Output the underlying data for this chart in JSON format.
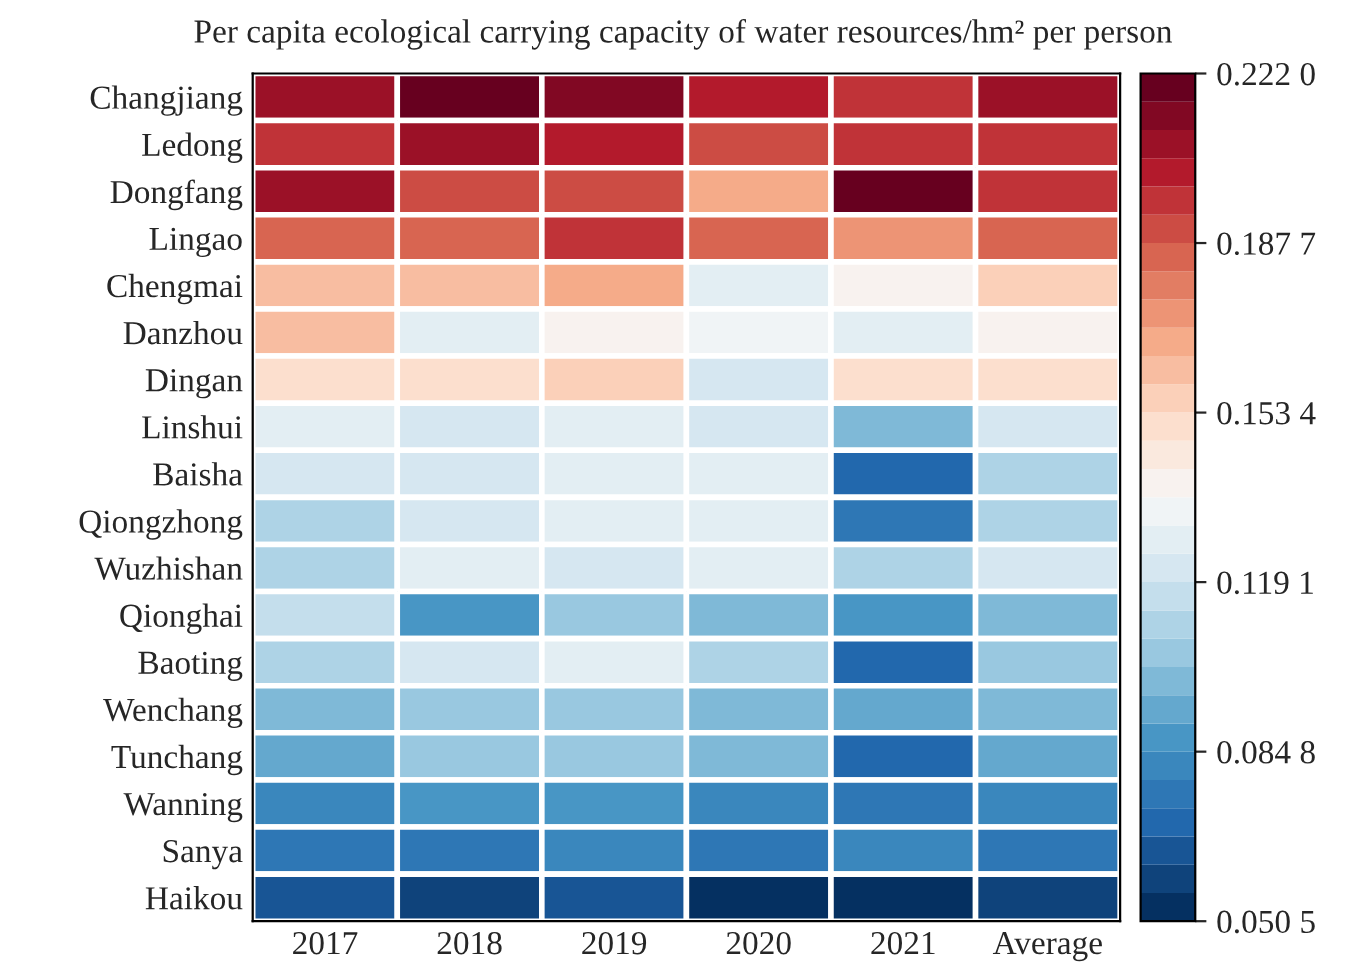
{
  "chart_data": {
    "type": "heatmap",
    "title": "Per capita ecological carrying capacity of water resources/hm² per person",
    "categories": [
      "2017",
      "2018",
      "2019",
      "2020",
      "2021",
      "Average"
    ],
    "y_categories": [
      "Changjiang",
      "Ledong",
      "Dongfang",
      "Lingao",
      "Chengmai",
      "Danzhou",
      "Dingan",
      "Linshui",
      "Baisha",
      "Qiongzhong",
      "Wuzhishan",
      "Qionghai",
      "Baoting",
      "Wenchang",
      "Tunchang",
      "Wanning",
      "Sanya",
      "Haikou"
    ],
    "cells": [
      [
        0.21,
        0.222,
        0.213,
        0.2,
        0.198,
        0.205
      ],
      [
        0.198,
        0.205,
        0.203,
        0.188,
        0.195,
        0.198
      ],
      [
        0.205,
        0.188,
        0.192,
        0.168,
        0.222,
        0.195
      ],
      [
        0.185,
        0.183,
        0.195,
        0.185,
        0.175,
        0.185
      ],
      [
        0.16,
        0.162,
        0.168,
        0.128,
        0.138,
        0.157
      ],
      [
        0.162,
        0.128,
        0.138,
        0.133,
        0.13,
        0.14
      ],
      [
        0.148,
        0.15,
        0.158,
        0.12,
        0.148,
        0.148
      ],
      [
        0.128,
        0.122,
        0.125,
        0.12,
        0.1,
        0.122
      ],
      [
        0.122,
        0.122,
        0.127,
        0.127,
        0.07,
        0.112
      ],
      [
        0.112,
        0.122,
        0.125,
        0.125,
        0.075,
        0.112
      ],
      [
        0.11,
        0.125,
        0.12,
        0.128,
        0.112,
        0.12
      ],
      [
        0.115,
        0.09,
        0.105,
        0.1,
        0.088,
        0.098
      ],
      [
        0.113,
        0.123,
        0.13,
        0.113,
        0.072,
        0.105
      ],
      [
        0.098,
        0.102,
        0.105,
        0.1,
        0.092,
        0.1
      ],
      [
        0.095,
        0.103,
        0.105,
        0.098,
        0.072,
        0.095
      ],
      [
        0.082,
        0.088,
        0.09,
        0.08,
        0.075,
        0.083
      ],
      [
        0.075,
        0.078,
        0.082,
        0.078,
        0.08,
        0.079
      ],
      [
        0.062,
        0.06,
        0.065,
        0.055,
        0.0505,
        0.058
      ]
    ],
    "clim": [
      0.0505,
      0.222
    ],
    "cticks": [
      {
        "value": 0.0505,
        "label": "0.050 5"
      },
      {
        "value": 0.0848,
        "label": "0.084 8"
      },
      {
        "value": 0.1191,
        "label": "0.119 1"
      },
      {
        "value": 0.1534,
        "label": "0.153 4"
      },
      {
        "value": 0.1877,
        "label": "0.187 7"
      },
      {
        "value": 0.222,
        "label": "0.222 0"
      }
    ]
  }
}
